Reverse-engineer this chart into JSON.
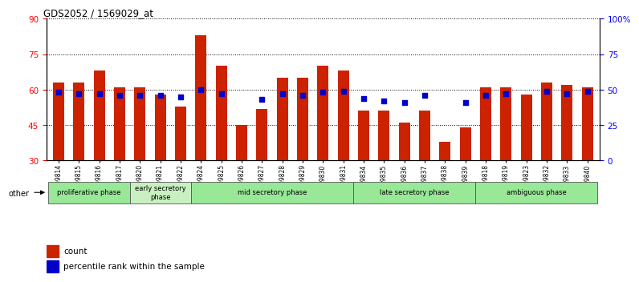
{
  "title": "GDS2052 / 1569029_at",
  "samples": [
    "GSM109814",
    "GSM109815",
    "GSM109816",
    "GSM109817",
    "GSM109820",
    "GSM109821",
    "GSM109822",
    "GSM109824",
    "GSM109825",
    "GSM109826",
    "GSM109827",
    "GSM109828",
    "GSM109829",
    "GSM109830",
    "GSM109831",
    "GSM109834",
    "GSM109835",
    "GSM109836",
    "GSM109837",
    "GSM109838",
    "GSM109839",
    "GSM109818",
    "GSM109819",
    "GSM109823",
    "GSM109832",
    "GSM109833",
    "GSM109840"
  ],
  "counts": [
    63,
    63,
    68,
    61,
    61,
    58,
    53,
    83,
    70,
    45,
    52,
    65,
    65,
    70,
    68,
    51,
    51,
    46,
    51,
    38,
    44,
    61,
    61,
    58,
    63,
    62,
    61
  ],
  "percentile_ranks": [
    48,
    47,
    47,
    46,
    46,
    46,
    45,
    50,
    47,
    null,
    43,
    47,
    46,
    48,
    49,
    44,
    42,
    41,
    46,
    null,
    41,
    46,
    47,
    null,
    49,
    47,
    49
  ],
  "phase_groups": [
    {
      "label": "proliferative phase",
      "start": 0,
      "end": 4,
      "color": "#98e898"
    },
    {
      "label": "early secretory\nphase",
      "start": 4,
      "end": 7,
      "color": "#c8f0c0"
    },
    {
      "label": "mid secretory phase",
      "start": 7,
      "end": 15,
      "color": "#98e898"
    },
    {
      "label": "late secretory phase",
      "start": 15,
      "end": 21,
      "color": "#98e898"
    },
    {
      "label": "ambiguous phase",
      "start": 21,
      "end": 27,
      "color": "#98e898"
    }
  ],
  "bar_color": "#cc2200",
  "dot_color": "#0000cc",
  "ylim_left": [
    30,
    90
  ],
  "ylim_right": [
    0,
    100
  ],
  "yticks_left": [
    30,
    45,
    60,
    75,
    90
  ],
  "yticks_right": [
    0,
    25,
    50,
    75,
    100
  ],
  "ytick_labels_right": [
    "0",
    "25",
    "50",
    "75",
    "100%"
  ],
  "bar_width": 0.55,
  "dot_size": 18
}
